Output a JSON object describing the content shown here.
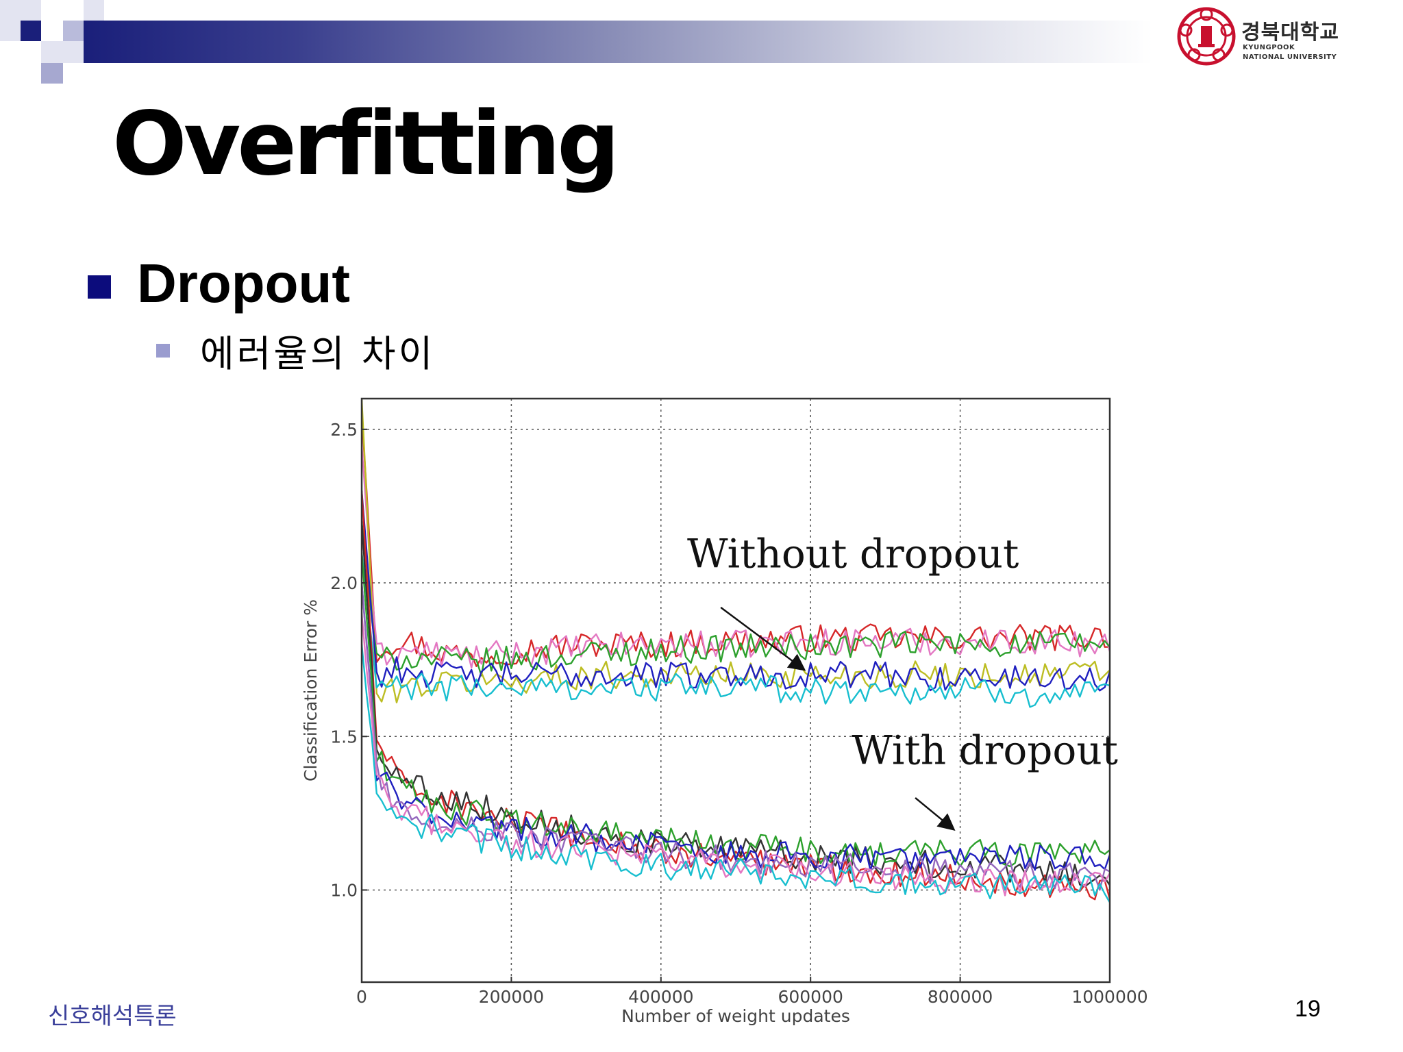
{
  "header": {
    "logo_name_ko": "경북대학교",
    "logo_name_en_1": "KYUNGPOOK",
    "logo_name_en_2": "NATIONAL UNIVERSITY"
  },
  "slide": {
    "title": "Overfitting",
    "bullet_1": "Dropout",
    "bullet_2": "에러율의 차이"
  },
  "footer": {
    "course": "신호해석특론",
    "page": "19"
  },
  "colors": {
    "accent_navy": "#1a1f7a",
    "bullet_navy": "#0c0c7c",
    "sub_bullet": "#9a9ccf",
    "footer_text": "#3a3f9a",
    "logo_red": "#c8102e"
  },
  "chart_data": {
    "type": "line",
    "title": "",
    "xlabel": "Number of weight updates",
    "ylabel": "Classification Error %",
    "xlim": [
      0,
      1000000
    ],
    "ylim": [
      0.7,
      2.6
    ],
    "xticks": [
      0,
      200000,
      400000,
      600000,
      800000,
      1000000
    ],
    "xtick_labels": [
      "0",
      "200000",
      "400000",
      "600000",
      "800000",
      "1000000"
    ],
    "yticks": [
      1.0,
      1.5,
      2.0,
      2.5
    ],
    "ytick_labels": [
      "1.0",
      "1.5",
      "2.0",
      "2.5"
    ],
    "grid": true,
    "annotations": [
      {
        "text": "Without dropout",
        "text_at": [
          435000,
          2.05
        ],
        "arrow_from": [
          480000,
          1.92
        ],
        "arrow_to": [
          590000,
          1.72
        ]
      },
      {
        "text": "With dropout",
        "text_at": [
          655000,
          1.41
        ],
        "arrow_from": [
          740000,
          1.3
        ],
        "arrow_to": [
          790000,
          1.2
        ]
      }
    ],
    "x": [
      0,
      20000,
      50000,
      100000,
      150000,
      200000,
      300000,
      400000,
      500000,
      600000,
      700000,
      800000,
      900000,
      1000000
    ],
    "series": [
      {
        "color": "#d62728",
        "values": [
          2.55,
          1.78,
          1.82,
          1.78,
          1.76,
          1.78,
          1.8,
          1.8,
          1.81,
          1.82,
          1.82,
          1.82,
          1.82,
          1.83
        ]
      },
      {
        "color": "#e377c2",
        "values": [
          2.45,
          1.76,
          1.78,
          1.77,
          1.76,
          1.77,
          1.79,
          1.8,
          1.8,
          1.81,
          1.81,
          1.81,
          1.81,
          1.8
        ]
      },
      {
        "color": "#2ca02c",
        "values": [
          2.2,
          1.74,
          1.76,
          1.75,
          1.74,
          1.75,
          1.77,
          1.78,
          1.79,
          1.79,
          1.8,
          1.8,
          1.8,
          1.8
        ]
      },
      {
        "color": "#bcbd22",
        "values": [
          2.6,
          1.62,
          1.66,
          1.67,
          1.68,
          1.68,
          1.7,
          1.7,
          1.7,
          1.7,
          1.7,
          1.7,
          1.7,
          1.71
        ]
      },
      {
        "color": "#1f1fbf",
        "values": [
          2.3,
          1.7,
          1.72,
          1.7,
          1.7,
          1.7,
          1.7,
          1.7,
          1.7,
          1.7,
          1.7,
          1.69,
          1.69,
          1.69
        ]
      },
      {
        "color": "#17becf",
        "values": [
          2.1,
          1.66,
          1.66,
          1.66,
          1.66,
          1.66,
          1.66,
          1.66,
          1.66,
          1.65,
          1.65,
          1.65,
          1.64,
          1.63
        ]
      },
      {
        "color": "#d62728",
        "values": [
          2.3,
          1.5,
          1.35,
          1.3,
          1.26,
          1.22,
          1.17,
          1.12,
          1.1,
          1.08,
          1.06,
          1.04,
          1.02,
          1.01
        ]
      },
      {
        "color": "#333333",
        "values": [
          2.2,
          1.48,
          1.36,
          1.32,
          1.28,
          1.24,
          1.19,
          1.15,
          1.13,
          1.11,
          1.09,
          1.08,
          1.06,
          1.04
        ]
      },
      {
        "color": "#2ca02c",
        "values": [
          2.1,
          1.45,
          1.33,
          1.28,
          1.25,
          1.22,
          1.19,
          1.16,
          1.14,
          1.13,
          1.12,
          1.12,
          1.12,
          1.14
        ]
      },
      {
        "color": "#1f1fbf",
        "values": [
          2.0,
          1.4,
          1.28,
          1.25,
          1.22,
          1.2,
          1.17,
          1.14,
          1.12,
          1.11,
          1.1,
          1.1,
          1.1,
          1.11
        ]
      },
      {
        "color": "#9467bd",
        "values": [
          2.0,
          1.38,
          1.26,
          1.23,
          1.2,
          1.18,
          1.15,
          1.12,
          1.1,
          1.08,
          1.07,
          1.06,
          1.05,
          1.04
        ]
      },
      {
        "color": "#e377c2",
        "values": [
          1.9,
          1.35,
          1.25,
          1.22,
          1.19,
          1.16,
          1.13,
          1.1,
          1.08,
          1.06,
          1.04,
          1.03,
          1.02,
          1.02
        ]
      },
      {
        "color": "#17becf",
        "values": [
          1.8,
          1.3,
          1.22,
          1.2,
          1.17,
          1.14,
          1.11,
          1.08,
          1.06,
          1.04,
          1.03,
          1.02,
          1.01,
          1.0
        ]
      }
    ]
  }
}
